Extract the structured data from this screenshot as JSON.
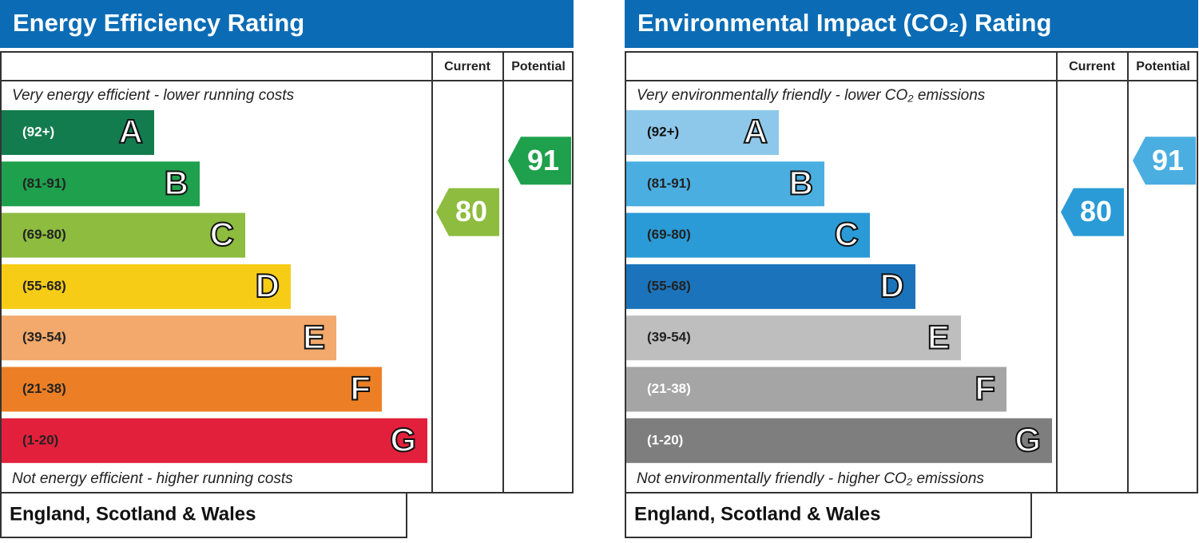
{
  "panels": [
    {
      "title": "Energy Efficiency Rating",
      "headers": [
        "Current",
        "Potential"
      ],
      "top_note": "Very energy efficient - lower running costs",
      "bottom_note": "Not energy efficient - higher running costs",
      "footer": "England, Scotland & Wales",
      "current": 80,
      "potential": 91,
      "bands": [
        {
          "range": "(92+)",
          "letter": "A",
          "color": "#137c4f",
          "text_color": "#ffffff"
        },
        {
          "range": "(81-91)",
          "letter": "B",
          "color": "#1fa04d",
          "text_color": "#222222"
        },
        {
          "range": "(69-80)",
          "letter": "C",
          "color": "#8dbc3f",
          "text_color": "#222222"
        },
        {
          "range": "(55-68)",
          "letter": "D",
          "color": "#f6cc17",
          "text_color": "#222222"
        },
        {
          "range": "(39-54)",
          "letter": "E",
          "color": "#f2a96b",
          "text_color": "#222222"
        },
        {
          "range": "(21-38)",
          "letter": "F",
          "color": "#ec7f25",
          "text_color": "#222222"
        },
        {
          "range": "(1-20)",
          "letter": "G",
          "color": "#e2203c",
          "text_color": "#222222"
        }
      ]
    },
    {
      "title": "Environmental Impact (CO₂) Rating",
      "headers": [
        "Current",
        "Potential"
      ],
      "top_note": "Very environmentally friendly - lower CO₂ emissions",
      "bottom_note": "Not environmentally friendly - higher CO₂ emissions",
      "footer": "England, Scotland & Wales",
      "current": 80,
      "potential": 91,
      "bands": [
        {
          "range": "(92+)",
          "letter": "A",
          "color": "#8dc8ea",
          "text_color": "#111111"
        },
        {
          "range": "(81-91)",
          "letter": "B",
          "color": "#4aaee1",
          "text_color": "#222222"
        },
        {
          "range": "(69-80)",
          "letter": "C",
          "color": "#2a9bd6",
          "text_color": "#222222"
        },
        {
          "range": "(55-68)",
          "letter": "D",
          "color": "#1b74bb",
          "text_color": "#222222"
        },
        {
          "range": "(39-54)",
          "letter": "E",
          "color": "#bebebe",
          "text_color": "#222222"
        },
        {
          "range": "(21-38)",
          "letter": "F",
          "color": "#a5a5a5",
          "text_color": "#ffffff"
        },
        {
          "range": "(1-20)",
          "letter": "G",
          "color": "#7e7e7e",
          "text_color": "#ffffff"
        }
      ]
    }
  ]
}
